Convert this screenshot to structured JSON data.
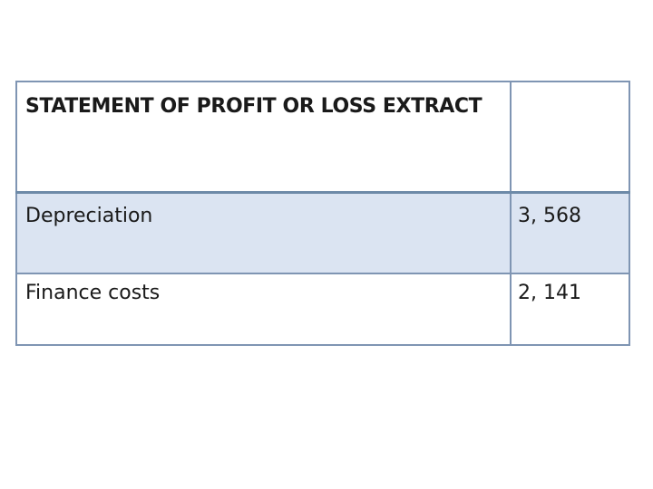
{
  "table": {
    "header": "STATEMENT OF PROFIT OR LOSS EXTRACT",
    "rows": [
      {
        "label": "Depreciation",
        "value": "3, 568"
      },
      {
        "label": "Finance costs",
        "value": "2, 141"
      }
    ]
  },
  "colors": {
    "border": "#7f95b3",
    "shaded_row": "#dbe4f2"
  }
}
